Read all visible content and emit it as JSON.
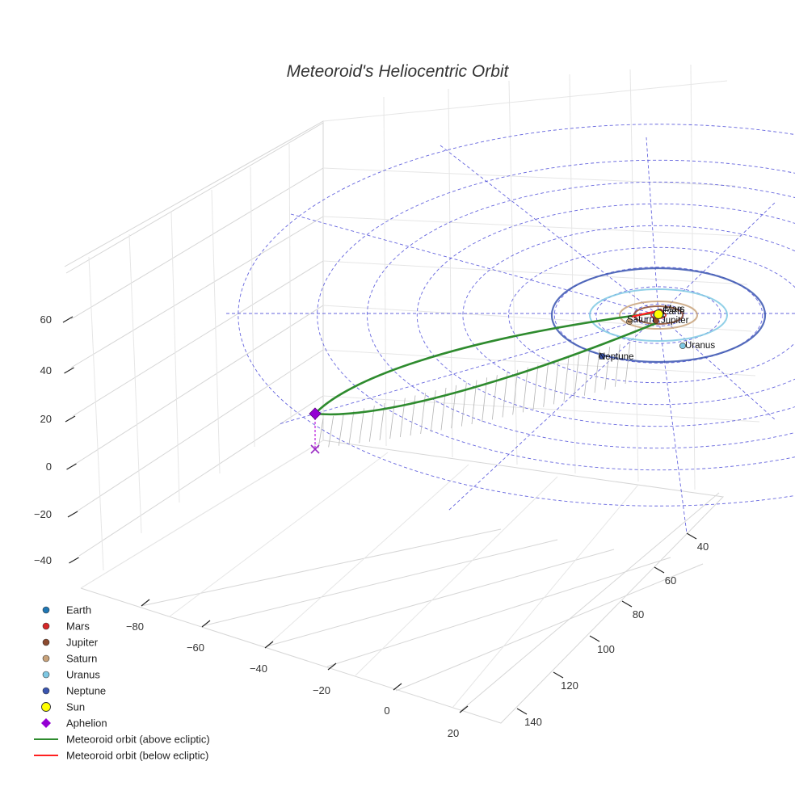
{
  "chart_data": {
    "type": "line",
    "title": "Meteoroid's Heliocentric Orbit",
    "projection": "3d",
    "grid": true,
    "legend_position": "bottom-left",
    "x_ticks": [
      "−80",
      "−60",
      "−40",
      "−20",
      "0",
      "20"
    ],
    "y_ticks": [
      "40",
      "60",
      "80",
      "100",
      "120",
      "140"
    ],
    "z_ticks": [
      "60",
      "40",
      "20",
      "0",
      "−20",
      "−40"
    ],
    "x_range": [
      -95,
      30
    ],
    "y_range": [
      30,
      150
    ],
    "z_range": [
      -50,
      70
    ],
    "planets": [
      {
        "name": "Earth",
        "label": "Earth",
        "a_au": 1.0,
        "color": "#1f77b4"
      },
      {
        "name": "Mars",
        "label": "Mars",
        "a_au": 1.52,
        "color": "#d62728"
      },
      {
        "name": "Jupiter",
        "label": "Jupiter",
        "a_au": 5.2,
        "color": "#8c4a2f"
      },
      {
        "name": "Saturn",
        "label": "Saturn",
        "a_au": 9.5,
        "color": "#c8a27a"
      },
      {
        "name": "Uranus",
        "label": "Uranus",
        "a_au": 19.2,
        "color": "#7ec8e3"
      },
      {
        "name": "Neptune",
        "label": "Neptune",
        "a_au": 30.1,
        "color": "#3a55b0"
      }
    ],
    "sun": {
      "name": "Sun",
      "color": "#ffff00"
    },
    "aphelion": {
      "name": "Aphelion",
      "color": "#9400d3"
    },
    "orbit_series": [
      {
        "name": "Meteoroid orbit (above ecliptic)",
        "color": "#2e8b2e"
      },
      {
        "name": "Meteoroid orbit (below ecliptic)",
        "color": "#ff2020"
      }
    ]
  },
  "legend": {
    "items": [
      {
        "label": "Earth",
        "marker": "circle",
        "color": "#1f77b4"
      },
      {
        "label": "Mars",
        "marker": "circle",
        "color": "#d62728"
      },
      {
        "label": "Jupiter",
        "marker": "circle",
        "color": "#8c4a2f"
      },
      {
        "label": "Saturn",
        "marker": "circle",
        "color": "#c8a27a"
      },
      {
        "label": "Uranus",
        "marker": "circle",
        "color": "#7ec8e3"
      },
      {
        "label": "Neptune",
        "marker": "circle",
        "color": "#3a55b0"
      },
      {
        "label": "Sun",
        "marker": "sun",
        "color": "#ffff00"
      },
      {
        "label": "Aphelion",
        "marker": "diamond",
        "color": "#9400d3"
      },
      {
        "label": "Meteoroid orbit (above ecliptic)",
        "marker": "line",
        "color": "#2e8b2e"
      },
      {
        "label": "Meteoroid orbit (below ecliptic)",
        "marker": "line",
        "color": "#ff2020"
      }
    ]
  }
}
